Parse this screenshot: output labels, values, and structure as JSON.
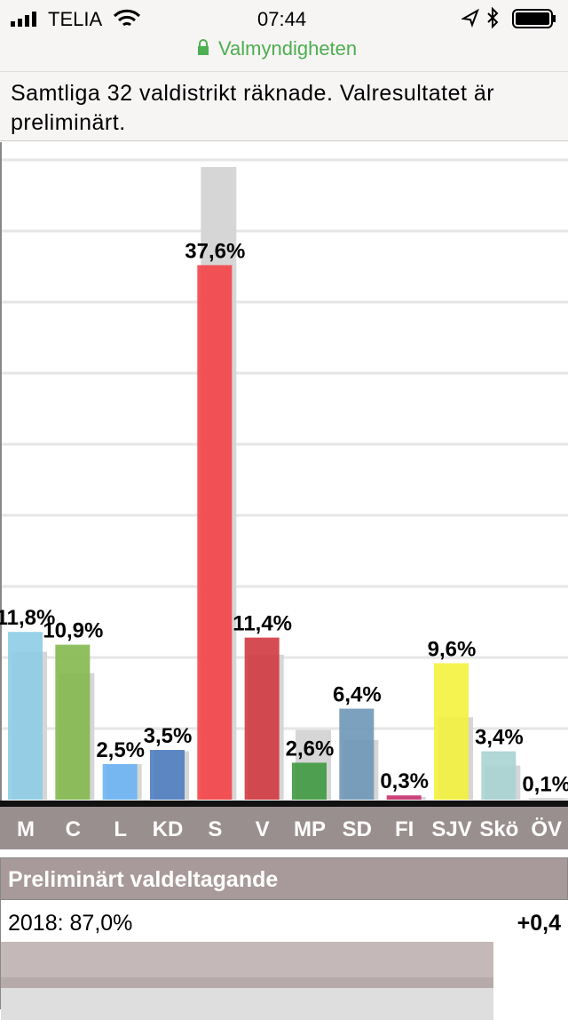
{
  "status": {
    "carrier": "TELIA",
    "time": "07:44",
    "url": "Valmyndigheten"
  },
  "notice": "Samtliga 32 valdistrikt räknade. Valresultatet är preliminärt.",
  "chart_data": {
    "type": "bar",
    "categories": [
      "M",
      "C",
      "L",
      "KD",
      "S",
      "V",
      "MP",
      "SD",
      "FI",
      "SJV",
      "Skö",
      "ÖV"
    ],
    "values": [
      11.8,
      10.9,
      2.5,
      3.5,
      37.6,
      11.4,
      2.6,
      6.4,
      0.3,
      9.6,
      3.4,
      0.1
    ],
    "value_labels": [
      "11,8%",
      "10,9%",
      "2,5%",
      "3,5%",
      "37,6%",
      "11,4%",
      "2,6%",
      "6,4%",
      "0,3%",
      "9,6%",
      "3,4%",
      "0,1%"
    ],
    "colors": [
      "#8ecde6",
      "#83b84e",
      "#6cb4f5",
      "#4f7dc0",
      "#f44346",
      "#d0393f",
      "#3f9a41",
      "#6e97b7",
      "#c8336e",
      "#f4f23c",
      "#a8d3d3",
      "#cccccc"
    ],
    "previous": {
      "color": "#d6d6d6",
      "values": [
        10.4,
        8.9,
        2.5,
        3.4,
        44.5,
        10.2,
        4.9,
        4.2,
        0.2,
        5.8,
        2.4,
        0.1
      ]
    },
    "ylim": [
      0,
      46
    ],
    "yticks": [
      5,
      10,
      15,
      20,
      25,
      30,
      35,
      40,
      45
    ],
    "grid": true
  },
  "turnout": {
    "title": "Preliminärt valdeltagande",
    "year_label": "2018: 87,0%",
    "change": "+0,4"
  }
}
